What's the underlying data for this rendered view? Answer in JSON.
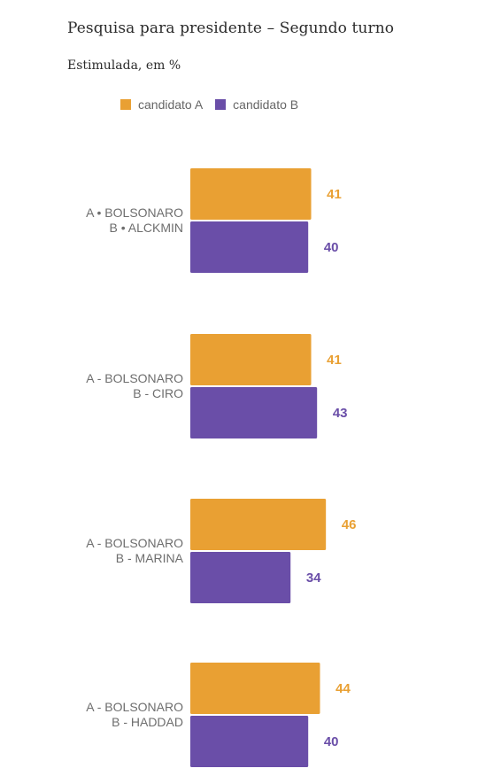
{
  "chart_data": {
    "type": "bar",
    "orientation": "horizontal",
    "title": "Pesquisa para presidente – Segundo turno",
    "subtitle": "Estimulada, em %",
    "legend_position": "top",
    "grid": false,
    "categories": [
      {
        "line1": "A • BOLSONARO",
        "line2": "B •  ALCKMIN"
      },
      {
        "line1": "A - BOLSONARO",
        "line2": "B - CIRO"
      },
      {
        "line1": "A - BOLSONARO",
        "line2": "B - MARINA"
      },
      {
        "line1": "A - BOLSONARO",
        "line2": "B - HADDAD"
      }
    ],
    "series": [
      {
        "name": "candidato A",
        "color": "#E9A033",
        "values": [
          41,
          41,
          46,
          44
        ]
      },
      {
        "name": "candidato B",
        "color": "#6A4EA8",
        "values": [
          40,
          43,
          34,
          40
        ]
      }
    ],
    "xlim": [
      0,
      100
    ]
  }
}
